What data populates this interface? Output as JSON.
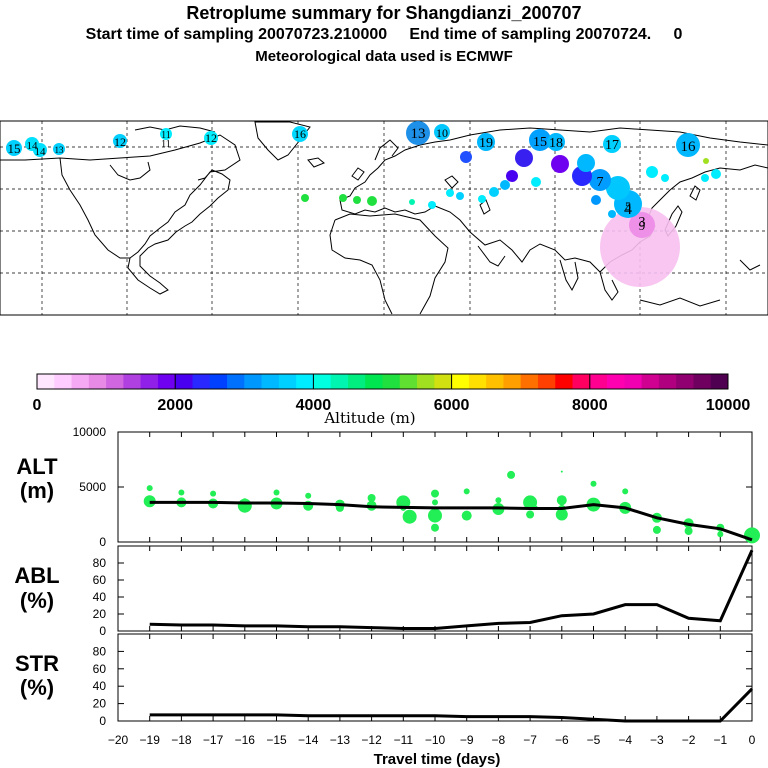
{
  "title": {
    "line1": "Retroplume summary for Shangdianzi_200707",
    "line2": "Start time of sampling 20070723.210000     End time of sampling 20070724.     0",
    "line3": "Meteorological data used is ECMWF"
  },
  "colorbar": {
    "label": "Altitude (m)",
    "ticks": [
      "0",
      "2000",
      "4000",
      "6000",
      "8000",
      "10000"
    ],
    "colors": [
      "#ffe6ff",
      "#ffccff",
      "#f5a9f5",
      "#e68ae6",
      "#d066e0",
      "#b040e0",
      "#9020e8",
      "#7000f0",
      "#4a00f0",
      "#2828ff",
      "#0040ff",
      "#0070ff",
      "#0098ff",
      "#00b8ff",
      "#00d0ff",
      "#00ecff",
      "#00ffe0",
      "#00f5b0",
      "#00ee80",
      "#00e650",
      "#20e040",
      "#60e030",
      "#a0e020",
      "#d0e010",
      "#ffff00",
      "#ffe000",
      "#ffc000",
      "#ffa000",
      "#ff7000",
      "#ff4000",
      "#ff0000",
      "#ff0060",
      "#ff0090",
      "#ff00b0",
      "#f000b0",
      "#d00090",
      "#b00080",
      "#900070",
      "#700060",
      "#500050"
    ]
  },
  "map": {
    "cluster_labels": [
      {
        "n": "15"
      },
      {
        "n": "14"
      },
      {
        "n": "14"
      },
      {
        "n": "13"
      },
      {
        "n": "12"
      },
      {
        "n": "11"
      },
      {
        "n": "11"
      },
      {
        "n": "12"
      },
      {
        "n": "16"
      },
      {
        "n": "13"
      },
      {
        "n": "10"
      },
      {
        "n": "19"
      },
      {
        "n": "15"
      },
      {
        "n": "18"
      },
      {
        "n": "17"
      },
      {
        "n": "16"
      },
      {
        "n": "9"
      },
      {
        "n": "7"
      },
      {
        "n": "5"
      },
      {
        "n": "4"
      },
      {
        "n": "3"
      }
    ]
  },
  "chart_data": [
    {
      "type": "line",
      "panel": "ALT",
      "ylabel_line1": "ALT",
      "ylabel_line2": "(m)",
      "ylim": [
        0,
        10000
      ],
      "yticks": [
        "10000",
        "5000",
        "0"
      ],
      "x": [
        -19,
        -18,
        -17,
        -16,
        -15,
        -14,
        -13,
        -12,
        -11,
        -10,
        -9,
        -8,
        -7,
        -6,
        -5,
        -4,
        -3,
        -2,
        -1,
        0
      ],
      "values": [
        3600,
        3600,
        3600,
        3550,
        3550,
        3500,
        3400,
        3200,
        3150,
        3100,
        3100,
        3100,
        3050,
        3050,
        3400,
        3100,
        2200,
        1600,
        1200,
        200
      ],
      "cluster_color": "#22ee55",
      "clusters": [
        [
          -19,
          3700
        ],
        [
          -19,
          4900
        ],
        [
          -18,
          3600
        ],
        [
          -18,
          4500
        ],
        [
          -17,
          3500
        ],
        [
          -17,
          4400
        ],
        [
          -16,
          3300
        ],
        [
          -16,
          3700
        ],
        [
          -15,
          3500
        ],
        [
          -15,
          4500
        ],
        [
          -14,
          3300
        ],
        [
          -14,
          4200
        ],
        [
          -13,
          3400
        ],
        [
          -13,
          3100
        ],
        [
          -12,
          3300
        ],
        [
          -12,
          4000
        ],
        [
          -11,
          3600
        ],
        [
          -11,
          3100
        ],
        [
          -10.8,
          2300
        ],
        [
          -10,
          3600
        ],
        [
          -10,
          2400
        ],
        [
          -10,
          4400
        ],
        [
          -10,
          1300
        ],
        [
          -9,
          2400
        ],
        [
          -9,
          4600
        ],
        [
          -8,
          3000
        ],
        [
          -8,
          3800
        ],
        [
          -7.6,
          6100
        ],
        [
          -7,
          2500
        ],
        [
          -7,
          3600
        ],
        [
          -6.8,
          3200
        ],
        [
          -6,
          2500
        ],
        [
          -6,
          3000
        ],
        [
          -6,
          3800
        ],
        [
          -6,
          6400
        ],
        [
          -5,
          3400
        ],
        [
          -5,
          5300
        ],
        [
          -4,
          3100
        ],
        [
          -4,
          4600
        ],
        [
          -3,
          2200
        ],
        [
          -3,
          1100
        ],
        [
          -2,
          1700
        ],
        [
          -2,
          1000
        ],
        [
          -1,
          1300
        ],
        [
          -1,
          700
        ],
        [
          0,
          600
        ]
      ]
    },
    {
      "type": "line",
      "panel": "ABL",
      "ylabel_line1": "ABL",
      "ylabel_line2": "(%)",
      "ylim": [
        0,
        100
      ],
      "yticks": [
        "80",
        "60",
        "40",
        "20",
        "0"
      ],
      "x": [
        -19,
        -18,
        -17,
        -16,
        -15,
        -14,
        -13,
        -12,
        -11,
        -10,
        -9,
        -8,
        -7,
        -6,
        -5,
        -4,
        -3,
        -2,
        -1,
        0
      ],
      "values": [
        8,
        7,
        7,
        6,
        6,
        5,
        5,
        4,
        3,
        3,
        6,
        9,
        10,
        18,
        20,
        31,
        31,
        15,
        12,
        95
      ]
    },
    {
      "type": "line",
      "panel": "STR",
      "ylabel_line1": "STR",
      "ylabel_line2": "(%)",
      "ylim": [
        0,
        100
      ],
      "yticks": [
        "80",
        "60",
        "40",
        "20",
        "0"
      ],
      "x": [
        -19,
        -18,
        -17,
        -16,
        -15,
        -14,
        -13,
        -12,
        -11,
        -10,
        -9,
        -8,
        -7,
        -6,
        -5,
        -4,
        -3,
        -2,
        -1,
        0
      ],
      "values": [
        7,
        7,
        7,
        7,
        7,
        6,
        6,
        6,
        6,
        6,
        5,
        5,
        5,
        4,
        2,
        0,
        0,
        0,
        0,
        37
      ],
      "xlabel": "Travel time (days)",
      "xticks": [
        "−20",
        "−19",
        "−18",
        "−17",
        "−16",
        "−15",
        "−14",
        "−13",
        "−12",
        "−11",
        "−10",
        "−9",
        "−8",
        "−7",
        "−6",
        "−5",
        "−4",
        "−3",
        "−2",
        "−1",
        "0"
      ]
    }
  ]
}
